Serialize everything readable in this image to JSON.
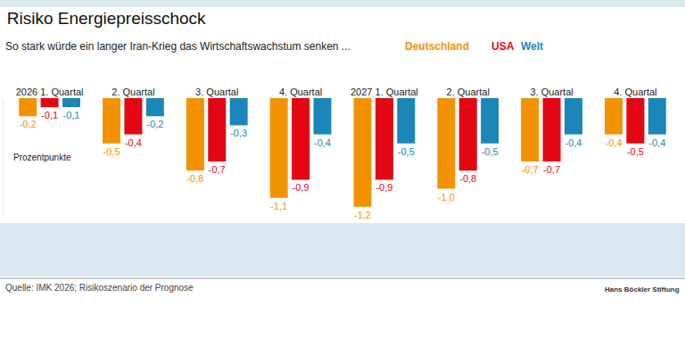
{
  "chart_data": {
    "type": "bar",
    "title": "Risiko Energiepreisschock",
    "subtitle": "So stark würde ein langer Iran-Krieg das Wirtschaftswachstum senken ...",
    "y_label": "Prozentpunkte",
    "source": "Quelle: IMK 2026; Risikoszenario der Prognose",
    "brand": "Hans Böckler Stiftung",
    "categories": [
      "2026 1. Quartal",
      "2. Quartal",
      "3. Quartal",
      "4. Quartal",
      "2027 1. Quartal",
      "2. Quartal",
      "3. Quartal",
      "4. Quartal"
    ],
    "series": [
      {
        "name": "Deutschland",
        "color": "#f39200",
        "values": [
          -0.2,
          -0.5,
          -0.8,
          -1.1,
          -1.2,
          -1.0,
          -0.7,
          -0.4
        ],
        "value_labels": [
          "-0,2",
          "-0,5",
          "-0,8",
          "-1,1",
          "-1,2",
          "-1,0",
          "-0,7",
          "-0,4"
        ]
      },
      {
        "name": "USA",
        "color": "#e30613",
        "values": [
          -0.1,
          -0.4,
          -0.7,
          -0.9,
          -0.9,
          -0.8,
          -0.7,
          -0.5
        ],
        "value_labels": [
          "-0,1",
          "-0,4",
          "-0,7",
          "-0,9",
          "-0,9",
          "-0,8",
          "-0,7",
          "-0,5"
        ]
      },
      {
        "name": "Welt",
        "color": "#1b87b8",
        "values": [
          -0.1,
          -0.2,
          -0.3,
          -0.4,
          -0.5,
          -0.5,
          -0.4,
          -0.4
        ],
        "value_labels": [
          "-0,1",
          "-0,2",
          "-0,3",
          "-0,4",
          "-0,5",
          "-0,5",
          "-0,4",
          "-0,4"
        ]
      }
    ],
    "ylim": [
      -1.3,
      0
    ],
    "yticks": [],
    "tick_labels": "x",
    "grid": false,
    "data_labels": true
  }
}
